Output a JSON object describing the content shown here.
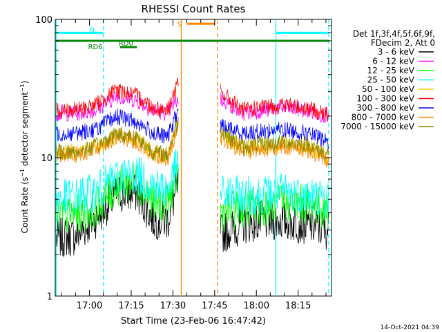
{
  "chart_data": {
    "type": "line",
    "title": "RHESSI Count Rates",
    "xlabel": "Start Time (23-Feb-06 16:47:42)",
    "ylabel": "Count Rate (s⁻¹ detector segment⁻¹)",
    "ylabel_main": "Count Rate (s",
    "ylabel_sup1": "−1",
    "ylabel_mid": " detector segment",
    "ylabel_sup2": "−1",
    "ylabel_end": ")",
    "yscale": "log",
    "ylim": [
      1,
      100
    ],
    "xlim": [
      "16:47:42",
      "18:27:00"
    ],
    "xticks": [
      "17:00",
      "17:15",
      "17:30",
      "17:45",
      "18:00",
      "18:15"
    ],
    "yticks": [
      "1",
      "10",
      "100"
    ],
    "grid": false,
    "timestamp": "14-Oct-2021 04:39",
    "legend": {
      "placement": "right",
      "header": [
        "Det 1f,3f,4f,5f,6f,9f,",
        "FDecim 2, Att 0"
      ]
    },
    "series": [
      {
        "name": "3 - 6 keV",
        "color": "#000000",
        "values": [
          2.6,
          2.7,
          3.6,
          5.5,
          5.6,
          3.6,
          3.5,
          6.5,
          0,
          0,
          2.8,
          3.3,
          3.5,
          3.5,
          3.3,
          3.0
        ]
      },
      {
        "name": "6 - 12 keV",
        "color": "#ff00ff",
        "values": [
          21,
          21,
          22,
          28,
          26,
          22,
          21,
          27,
          0,
          0,
          27,
          21,
          22,
          23,
          22,
          20
        ]
      },
      {
        "name": "12 - 25 keV",
        "color": "#00ff00",
        "values": [
          3.8,
          3.9,
          4.3,
          6.3,
          6.8,
          4.8,
          4.6,
          8.0,
          0,
          0,
          4.0,
          4.3,
          4.4,
          4.8,
          4.6,
          4.2
        ]
      },
      {
        "name": "25 - 50 keV",
        "color": "#00ffff",
        "values": [
          5.0,
          5.2,
          5.6,
          7.2,
          7.6,
          6.3,
          5.8,
          9.5,
          0,
          0,
          5.5,
          5.3,
          5.4,
          5.6,
          5.4,
          5.0
        ]
      },
      {
        "name": "50 - 100 keV",
        "color": "#ffcc00",
        "values": [
          11,
          11,
          12,
          14.5,
          13.5,
          11,
          10,
          18,
          0,
          0,
          15,
          11.5,
          12,
          12.5,
          12,
          10
        ]
      },
      {
        "name": "100 - 300 keV",
        "color": "#ff0000",
        "values": [
          22,
          22,
          24,
          31,
          28,
          23,
          22,
          35,
          0,
          0,
          30,
          22,
          23,
          24,
          23,
          20
        ]
      },
      {
        "name": "300 - 800 keV",
        "color": "#0000ff",
        "values": [
          15,
          15,
          16,
          20,
          18,
          15,
          14,
          22,
          0,
          0,
          17,
          15,
          15.5,
          16,
          15,
          13
        ]
      },
      {
        "name": "800 - 7000 keV",
        "color": "#ff8800",
        "values": [
          10.5,
          10.5,
          11.5,
          14,
          13,
          10.5,
          9.8,
          17,
          0,
          0,
          14,
          11,
          11.5,
          12,
          11.5,
          9.5
        ]
      },
      {
        "name": "7000 - 15000 keV",
        "color": "#888800",
        "values": [
          11,
          11,
          12,
          15,
          14,
          11,
          10.5,
          19,
          0,
          0,
          16,
          12,
          12.5,
          13,
          12.5,
          10.5
        ]
      }
    ],
    "x": [
      "16:48",
      "16:55",
      "17:02",
      "17:10",
      "17:17",
      "17:23",
      "17:28",
      "17:32",
      "17:38",
      "17:44",
      "17:47",
      "17:55",
      "18:02",
      "18:10",
      "18:18",
      "18:26"
    ],
    "annotations": [
      {
        "label": "N",
        "color": "#00ffff",
        "spans": [
          [
            "16:48",
            "17:05"
          ],
          [
            "18:07",
            "18:26"
          ]
        ],
        "level": 80
      },
      {
        "label": "S",
        "color": "#ff8800",
        "spans": [
          [
            "17:35",
            "17:45"
          ]
        ],
        "level": 93
      },
      {
        "label": "RD6",
        "color": "#008800",
        "spans": [
          [
            "16:48",
            "18:26"
          ]
        ],
        "level": 70
      },
      {
        "label": "RD0",
        "color": "#008800",
        "spans": [
          [
            "17:11",
            "17:17"
          ]
        ],
        "level": 63
      }
    ],
    "vlines": [
      {
        "t": "16:48",
        "color": "#00ffff",
        "style": "solid"
      },
      {
        "t": "17:05",
        "color": "#00ffff",
        "style": "dashed"
      },
      {
        "t": "17:33",
        "color": "#ff8800",
        "style": "solid"
      },
      {
        "t": "17:46",
        "color": "#ff8800",
        "style": "dashed"
      },
      {
        "t": "18:07",
        "color": "#00ffff",
        "style": "solid"
      },
      {
        "t": "18:26",
        "color": "#00ffff",
        "style": "dashed"
      }
    ]
  }
}
